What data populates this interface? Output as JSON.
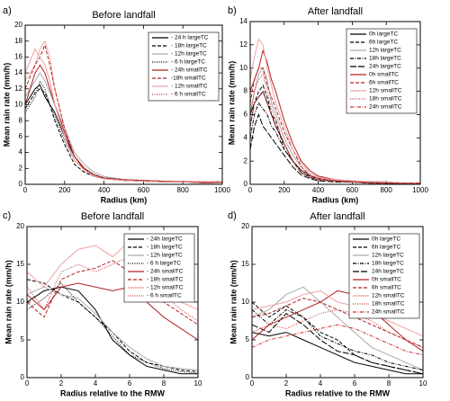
{
  "chart_data": [
    {
      "type": "line",
      "label": "a)",
      "title": "Before landfall",
      "x_label": "Radius (km)",
      "y_label": "Mean rain rate (mm/h)",
      "x": [
        0,
        25,
        50,
        75,
        100,
        125,
        150,
        200,
        250,
        300,
        350,
        400,
        500,
        600,
        700,
        800,
        900,
        1000
      ],
      "xlim": [
        0,
        1000
      ],
      "xticks": [
        0,
        200,
        400,
        600,
        800,
        1000
      ],
      "ylim": [
        0,
        20
      ],
      "yticks": [
        0,
        2,
        4,
        6,
        8,
        10,
        12,
        14,
        16,
        18,
        20
      ],
      "legend": "upper right",
      "series": [
        {
          "name": "- 24 h largeTC",
          "color": "#000000",
          "dash": "solid",
          "values": [
            10,
            11,
            12,
            12.5,
            11,
            10,
            9,
            6,
            3.5,
            2,
            1.2,
            0.8,
            0.5,
            0.4,
            0.3,
            0.3,
            0.2,
            0.2
          ]
        },
        {
          "name": "- 18h largeTC",
          "color": "#000000",
          "dash": "dash",
          "values": [
            9.5,
            10.5,
            11.5,
            12,
            11.5,
            10,
            8,
            5,
            2.5,
            1.5,
            1,
            0.7,
            0.5,
            0.4,
            0.3,
            0.3,
            0.3,
            0.2
          ]
        },
        {
          "name": "- 12h largeTC",
          "color": "#aaaaaa",
          "dash": "solid",
          "values": [
            11,
            12,
            13,
            14,
            13,
            11.5,
            10,
            7,
            4,
            2.5,
            1.5,
            1,
            0.6,
            0.5,
            0.4,
            0.3,
            0.3,
            0.2
          ]
        },
        {
          "name": "- 6 h largeTC",
          "color": "#000000",
          "dash": "dot",
          "values": [
            9,
            10,
            11,
            13,
            12,
            10,
            8.5,
            5.5,
            3,
            1.8,
            1.2,
            0.8,
            0.6,
            0.5,
            0.4,
            0.3,
            0.3,
            0.3
          ]
        },
        {
          "name": "- 24h smallTC",
          "color": "#b22222",
          "dash": "solid",
          "values": [
            10,
            12,
            14,
            15,
            14,
            12,
            10,
            6.5,
            3.5,
            1.8,
            1,
            0.7,
            0.5,
            0.4,
            0.3,
            0.3,
            0.2,
            0.2
          ]
        },
        {
          "name": "-18h smallTC",
          "color": "#b22222",
          "dash": "dash",
          "values": [
            12,
            13.5,
            15,
            16,
            17.5,
            15,
            12,
            7,
            3.5,
            2,
            1.2,
            0.8,
            0.6,
            0.5,
            0.4,
            0.3,
            0.3,
            0.3
          ]
        },
        {
          "name": "- 12h smallTC",
          "color": "#f0a0a0",
          "dash": "solid",
          "values": [
            14,
            15.5,
            17,
            16,
            15,
            13,
            10,
            6,
            3,
            1.8,
            1,
            0.7,
            0.5,
            0.4,
            0.3,
            0.3,
            0.3,
            0.2
          ]
        },
        {
          "name": "- 6 h smallTC",
          "color": "#cc3333",
          "dash": "dot",
          "values": [
            13,
            14,
            15,
            17,
            18,
            16,
            12,
            7,
            3.5,
            2,
            1.2,
            0.8,
            0.6,
            0.5,
            0.4,
            0.4,
            0.3,
            0.3
          ]
        }
      ]
    },
    {
      "type": "line",
      "label": "b)",
      "title": "After landfall",
      "x_label": "Radius (km)",
      "y_label": "Mean rain rate (mm/h)",
      "x": [
        0,
        25,
        50,
        75,
        100,
        125,
        150,
        200,
        250,
        300,
        350,
        400,
        500,
        600,
        700,
        800,
        900,
        1000
      ],
      "xlim": [
        0,
        1000
      ],
      "xticks": [
        0,
        200,
        400,
        600,
        800,
        1000
      ],
      "ylim": [
        0,
        14
      ],
      "yticks": [
        0,
        2,
        4,
        6,
        8,
        10,
        12,
        14
      ],
      "legend": "upper right",
      "series": [
        {
          "name": "0h largeTC",
          "color": "#000000",
          "dash": "solid",
          "values": [
            6,
            7,
            7.5,
            8,
            7,
            6,
            5,
            3.5,
            2,
            1.2,
            0.8,
            0.5,
            0.3,
            0.2,
            0.2,
            0.1,
            0.1,
            0.1
          ]
        },
        {
          "name": "6h largeTC",
          "color": "#000000",
          "dash": "dash",
          "values": [
            5,
            7,
            8,
            8.5,
            7.5,
            6,
            5.5,
            3,
            2,
            1,
            0.7,
            0.5,
            0.3,
            0.2,
            0.2,
            0.2,
            0.1,
            0.1
          ]
        },
        {
          "name": "12h largeTC",
          "color": "#aaaaaa",
          "dash": "solid",
          "values": [
            6,
            8,
            9.5,
            10,
            9,
            7,
            6,
            4,
            2.5,
            1.5,
            0.8,
            0.5,
            0.3,
            0.3,
            0.2,
            0.2,
            0.1,
            0.1
          ]
        },
        {
          "name": "18h largeTC",
          "color": "#000000",
          "dash": "dashdot",
          "values": [
            4,
            6,
            7,
            6.5,
            6,
            5,
            4.5,
            3,
            2,
            1,
            0.6,
            0.4,
            0.3,
            0.2,
            0.2,
            0.1,
            0.1,
            0.1
          ]
        },
        {
          "name": "24h largeTC",
          "color": "#000000",
          "dash": "longdash",
          "values": [
            3,
            5,
            6,
            5,
            4.5,
            4,
            3.5,
            2.5,
            1.5,
            0.8,
            0.5,
            0.3,
            0.2,
            0.2,
            0.1,
            0.1,
            0.1,
            0.1
          ]
        },
        {
          "name": "0h smallTC",
          "color": "#b22222",
          "dash": "solid",
          "values": [
            8,
            9,
            10,
            11.5,
            10.5,
            9,
            8,
            5.5,
            3.5,
            2,
            1.2,
            0.7,
            0.4,
            0.3,
            0.2,
            0.2,
            0.1,
            0.1
          ]
        },
        {
          "name": "6h smallTC",
          "color": "#b22222",
          "dash": "dash",
          "values": [
            7,
            9,
            10,
            10,
            8.5,
            7.5,
            6.5,
            4.5,
            3,
            1.5,
            0.8,
            0.5,
            0.3,
            0.2,
            0.2,
            0.1,
            0.1,
            0.1
          ]
        },
        {
          "name": "12h smallTC",
          "color": "#f0a0a0",
          "dash": "solid",
          "values": [
            9,
            11,
            12.5,
            12,
            10,
            8.5,
            7,
            5,
            3,
            1.8,
            1,
            0.6,
            0.4,
            0.3,
            0.2,
            0.2,
            0.1,
            0.1
          ]
        },
        {
          "name": "18h smallTC",
          "color": "#cc3333",
          "dash": "dot",
          "values": [
            6,
            8,
            9,
            9.5,
            8,
            6.5,
            5.5,
            3.5,
            2,
            1.2,
            0.7,
            0.4,
            0.3,
            0.2,
            0.2,
            0.1,
            0.1,
            0.1
          ]
        },
        {
          "name": "24h smallTC",
          "color": "#cc3333",
          "dash": "dashdot",
          "values": [
            5,
            7,
            7.5,
            8,
            7,
            6,
            5,
            3.5,
            2,
            1,
            0.6,
            0.4,
            0.3,
            0.2,
            0.1,
            0.1,
            0.1,
            0.1
          ]
        }
      ]
    },
    {
      "type": "line",
      "label": "c)",
      "title": "Before landfall",
      "x_label": "Radius relative to the RMW",
      "y_label": "Mean rain rate (mm/h)",
      "x": [
        0,
        1,
        2,
        3,
        4,
        5,
        6,
        7,
        8,
        9,
        10
      ],
      "xlim": [
        0,
        10
      ],
      "xticks": [
        0,
        2,
        4,
        6,
        8,
        10
      ],
      "ylim": [
        0,
        20
      ],
      "yticks": [
        0,
        5,
        10,
        15,
        20
      ],
      "legend": "upper right",
      "series": [
        {
          "name": "- 24h largeTC",
          "color": "#000000",
          "dash": "solid",
          "values": [
            10,
            11.5,
            12,
            11.5,
            9,
            5,
            3,
            1.5,
            1,
            0.5,
            0.5
          ]
        },
        {
          "name": "- 18h largeTC",
          "color": "#000000",
          "dash": "dash",
          "values": [
            13,
            12.5,
            11,
            10,
            8,
            6,
            3.5,
            2,
            1.5,
            1,
            0.8
          ]
        },
        {
          "name": "- 12h largeTC",
          "color": "#aaaaaa",
          "dash": "solid",
          "values": [
            11,
            12,
            11,
            10.5,
            8.5,
            6,
            4,
            2.5,
            1.5,
            1.2,
            1
          ]
        },
        {
          "name": "- 6 h largeTC",
          "color": "#000000",
          "dash": "dot",
          "values": [
            9,
            10.5,
            12.5,
            10,
            8,
            5.5,
            3,
            2,
            1.2,
            0.8,
            0.6
          ]
        },
        {
          "name": "- 24h smallTC",
          "color": "#b22222",
          "dash": "solid",
          "values": [
            11,
            9,
            12,
            12.5,
            12,
            11.5,
            12,
            10,
            8,
            6.5,
            5
          ]
        },
        {
          "name": "- 18h smallTC",
          "color": "#b22222",
          "dash": "dash",
          "values": [
            10,
            8,
            13,
            14,
            14.5,
            15.5,
            14,
            12,
            10,
            8.5,
            7
          ]
        },
        {
          "name": "- 12h smallTC",
          "color": "#f0a0a0",
          "dash": "solid",
          "values": [
            14,
            12,
            15,
            17,
            17.5,
            16,
            18,
            16,
            12,
            10,
            9
          ]
        },
        {
          "name": "- 6 h smallTC",
          "color": "#cc3333",
          "dash": "dot",
          "values": [
            12,
            9,
            14,
            15,
            14,
            15,
            16,
            13,
            11,
            9,
            7.5
          ]
        }
      ]
    },
    {
      "type": "line",
      "label": "d)",
      "title": "After landfall",
      "x_label": "Radius relative to the RMW",
      "y_label": "Mean rain rate (mm/h)",
      "x": [
        0,
        1,
        2,
        3,
        4,
        5,
        6,
        7,
        8,
        9,
        10
      ],
      "xlim": [
        0,
        10
      ],
      "xticks": [
        0,
        2,
        4,
        6,
        8,
        10
      ],
      "ylim": [
        0,
        20
      ],
      "yticks": [
        0,
        5,
        10,
        15,
        20
      ],
      "legend": "upper right",
      "series": [
        {
          "name": "0h largeTC",
          "color": "#000000",
          "dash": "solid",
          "values": [
            6,
            5.5,
            6,
            5,
            4,
            3,
            2,
            1.5,
            1,
            0.5,
            0.5
          ]
        },
        {
          "name": "6h largeTC",
          "color": "#000000",
          "dash": "dash",
          "values": [
            10,
            8,
            9.5,
            8,
            6,
            5,
            3,
            2,
            1.5,
            1,
            0.5
          ]
        },
        {
          "name": "12h largeTC",
          "color": "#aaaaaa",
          "dash": "solid",
          "values": [
            8,
            9,
            11,
            12,
            10,
            8,
            6,
            4,
            3,
            2,
            1
          ]
        },
        {
          "name": "18h largeTC",
          "color": "#000000",
          "dash": "dashdot",
          "values": [
            9,
            7,
            9,
            8,
            5.5,
            4.5,
            3.5,
            3,
            2,
            1.5,
            1
          ]
        },
        {
          "name": "24h largeTC",
          "color": "#000000",
          "dash": "longdash",
          "values": [
            7,
            6,
            8.5,
            7,
            5,
            3.5,
            3,
            2,
            1.5,
            1,
            0.5
          ]
        },
        {
          "name": "0h smallTC",
          "color": "#b22222",
          "dash": "solid",
          "values": [
            5,
            7,
            8,
            9,
            10,
            11.5,
            11,
            9,
            7,
            5,
            3.5
          ]
        },
        {
          "name": "6h smallTC",
          "color": "#b22222",
          "dash": "dash",
          "values": [
            8,
            8.5,
            9.5,
            10.5,
            10,
            9,
            8,
            7,
            6,
            5,
            4
          ]
        },
        {
          "name": "12h smallTC",
          "color": "#f0a0a0",
          "dash": "solid",
          "values": [
            9,
            9.5,
            10,
            11,
            11.5,
            10,
            9.5,
            8.5,
            7.5,
            6.5,
            5.5
          ]
        },
        {
          "name": "18h smallTC",
          "color": "#cc3333",
          "dash": "dot",
          "values": [
            6,
            7,
            6.5,
            7.5,
            8.5,
            9,
            8.5,
            7.5,
            6,
            5,
            4
          ]
        },
        {
          "name": "24h smallTC",
          "color": "#cc3333",
          "dash": "dashdot",
          "values": [
            4,
            5,
            5.5,
            6,
            6.5,
            7,
            6.5,
            5.5,
            4.5,
            3.5,
            3
          ]
        }
      ]
    }
  ]
}
